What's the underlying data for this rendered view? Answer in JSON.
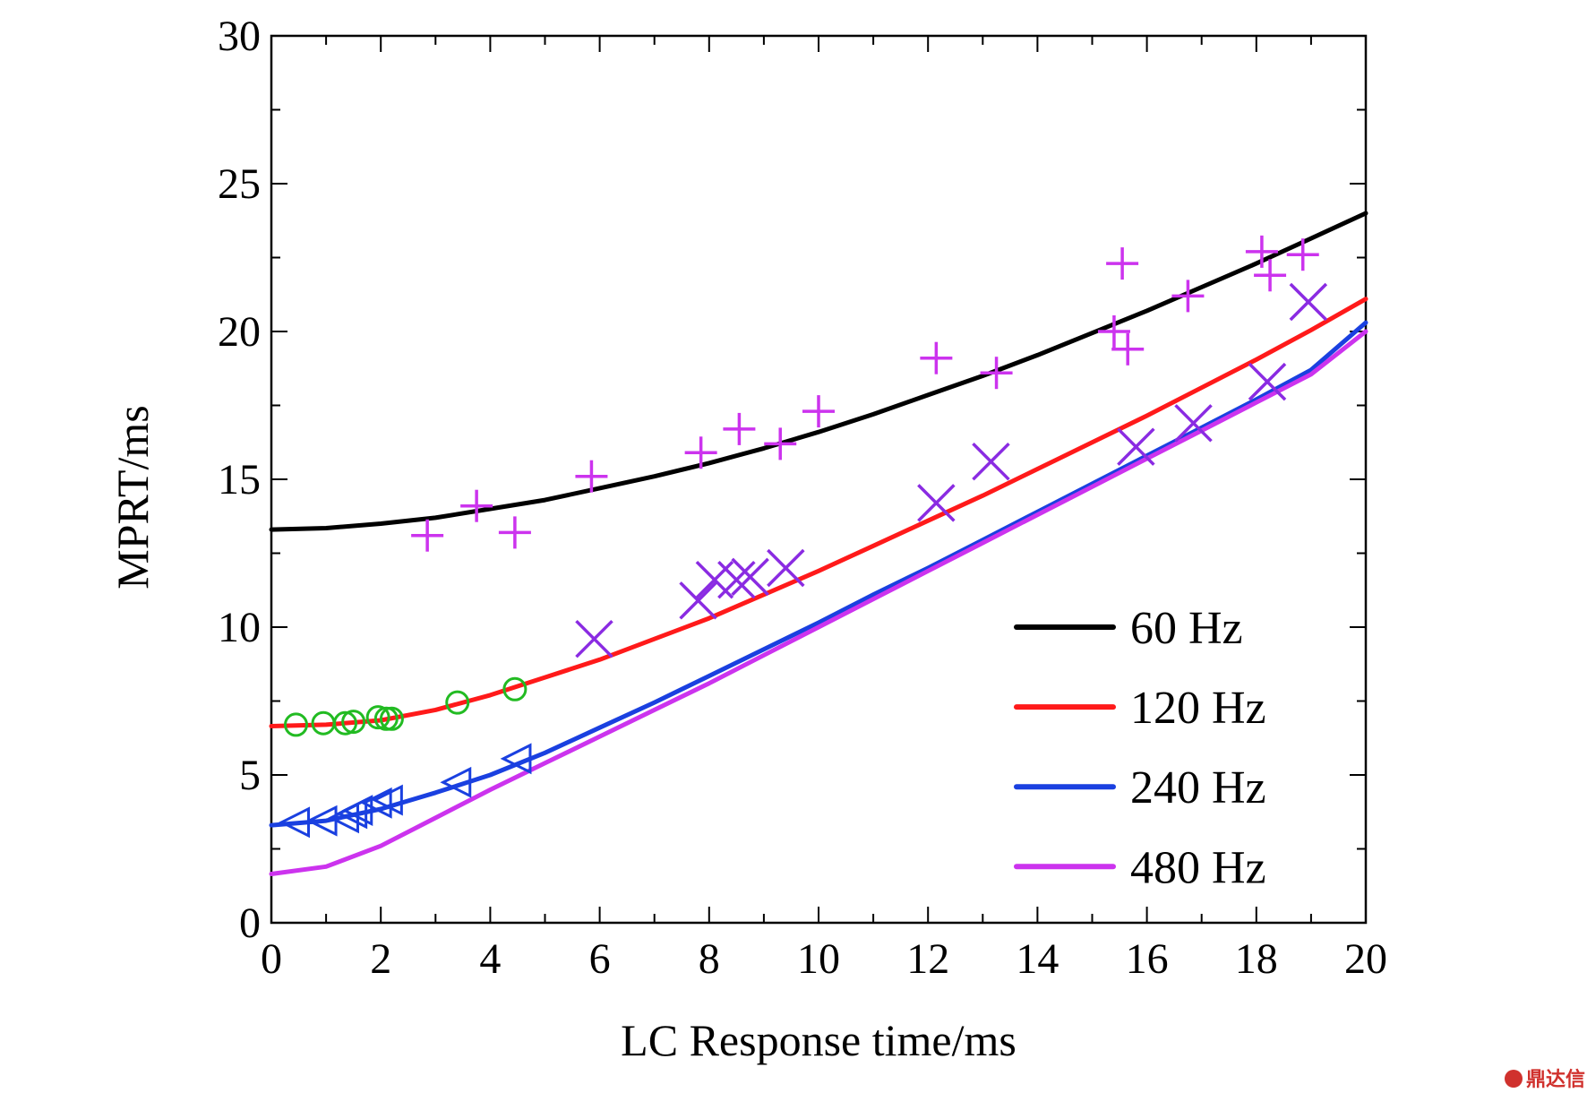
{
  "chart_data": {
    "type": "line",
    "xlabel": "LC Response time/ms",
    "ylabel": "MPRT/ms",
    "xlim": [
      0,
      20
    ],
    "ylim": [
      0,
      30
    ],
    "xticks": [
      "0",
      "2",
      "4",
      "6",
      "8",
      "10",
      "12",
      "14",
      "16",
      "18",
      "20"
    ],
    "yticks": [
      "0",
      "5",
      "10",
      "15",
      "20",
      "25",
      "30"
    ],
    "grid": false,
    "legend_position": "bottom-right",
    "series": [
      {
        "name": "60 Hz",
        "color": "#000000",
        "x": [
          0,
          1,
          2,
          3,
          4,
          5,
          6,
          7,
          8,
          9,
          10,
          11,
          12,
          13,
          14,
          15,
          16,
          17,
          18,
          19,
          20
        ],
        "y": [
          13.3,
          13.35,
          13.5,
          13.7,
          14.0,
          14.3,
          14.7,
          15.1,
          15.55,
          16.05,
          16.6,
          17.2,
          17.85,
          18.5,
          19.2,
          19.95,
          20.7,
          21.5,
          22.3,
          23.15,
          24.0
        ]
      },
      {
        "name": "120 Hz",
        "color": "#ff1a1a",
        "x": [
          0,
          1,
          2,
          3,
          4,
          5,
          6,
          7,
          8,
          9,
          10,
          11,
          12,
          13,
          14,
          15,
          16,
          17,
          18,
          19,
          20
        ],
        "y": [
          6.65,
          6.7,
          6.85,
          7.2,
          7.7,
          8.3,
          8.9,
          9.6,
          10.3,
          11.1,
          11.9,
          12.75,
          13.6,
          14.45,
          15.35,
          16.25,
          17.15,
          18.1,
          19.05,
          20.05,
          21.1
        ]
      },
      {
        "name": "240 Hz",
        "color": "#1a40e0",
        "x": [
          0,
          1,
          2,
          3,
          4,
          5,
          6,
          7,
          8,
          9,
          10,
          11,
          12,
          13,
          14,
          15,
          16,
          17,
          18,
          19,
          20
        ],
        "y": [
          3.3,
          3.45,
          3.85,
          4.4,
          5.0,
          5.75,
          6.6,
          7.45,
          8.35,
          9.25,
          10.15,
          11.1,
          12.0,
          12.95,
          13.9,
          14.85,
          15.8,
          16.75,
          17.7,
          18.7,
          20.3
        ]
      },
      {
        "name": "480 Hz",
        "color": "#cc33ee",
        "x": [
          0,
          1,
          2,
          3,
          4,
          5,
          6,
          7,
          8,
          9,
          10,
          11,
          12,
          13,
          14,
          15,
          16,
          17,
          18,
          19,
          20
        ],
        "y": [
          1.65,
          1.9,
          2.6,
          3.55,
          4.5,
          5.4,
          6.3,
          7.2,
          8.1,
          9.05,
          10.0,
          10.95,
          11.9,
          12.85,
          13.8,
          14.75,
          15.7,
          16.65,
          17.6,
          18.55,
          20.0
        ]
      }
    ],
    "markers": [
      {
        "symbol": "plus",
        "color": "#cc33ee",
        "points": [
          [
            2.85,
            13.1
          ],
          [
            3.75,
            14.1
          ],
          [
            4.45,
            13.2
          ],
          [
            5.85,
            15.1
          ],
          [
            7.85,
            15.9
          ],
          [
            8.55,
            16.7
          ],
          [
            9.3,
            16.2
          ],
          [
            10.0,
            17.3
          ],
          [
            12.15,
            19.1
          ],
          [
            13.25,
            18.6
          ],
          [
            15.4,
            20.0
          ],
          [
            15.55,
            22.3
          ],
          [
            15.65,
            19.4
          ],
          [
            16.75,
            21.2
          ],
          [
            18.1,
            22.7
          ],
          [
            18.25,
            21.9
          ],
          [
            18.85,
            22.6
          ]
        ]
      },
      {
        "symbol": "cross",
        "color": "#8a2be2",
        "points": [
          [
            5.9,
            9.6
          ],
          [
            7.8,
            10.9
          ],
          [
            8.1,
            11.6
          ],
          [
            8.5,
            11.6
          ],
          [
            8.75,
            11.7
          ],
          [
            9.4,
            12.0
          ],
          [
            12.15,
            14.2
          ],
          [
            13.15,
            15.6
          ],
          [
            15.8,
            16.1
          ],
          [
            16.85,
            16.9
          ],
          [
            18.2,
            18.3
          ],
          [
            18.95,
            21.0
          ]
        ]
      },
      {
        "symbol": "circle",
        "color": "#22bb22",
        "points": [
          [
            0.45,
            6.7
          ],
          [
            0.95,
            6.75
          ],
          [
            1.35,
            6.75
          ],
          [
            1.5,
            6.8
          ],
          [
            1.95,
            6.95
          ],
          [
            2.1,
            6.9
          ],
          [
            2.2,
            6.9
          ],
          [
            3.4,
            7.45
          ],
          [
            4.45,
            7.9
          ]
        ]
      },
      {
        "symbol": "triangle-left",
        "color": "#1a40e0",
        "points": [
          [
            0.45,
            3.4
          ],
          [
            0.95,
            3.45
          ],
          [
            1.35,
            3.55
          ],
          [
            1.5,
            3.7
          ],
          [
            1.6,
            3.8
          ],
          [
            1.95,
            4.05
          ],
          [
            2.15,
            4.15
          ],
          [
            3.4,
            4.75
          ],
          [
            4.5,
            5.55
          ]
        ]
      }
    ]
  },
  "watermark": "鼎达信"
}
